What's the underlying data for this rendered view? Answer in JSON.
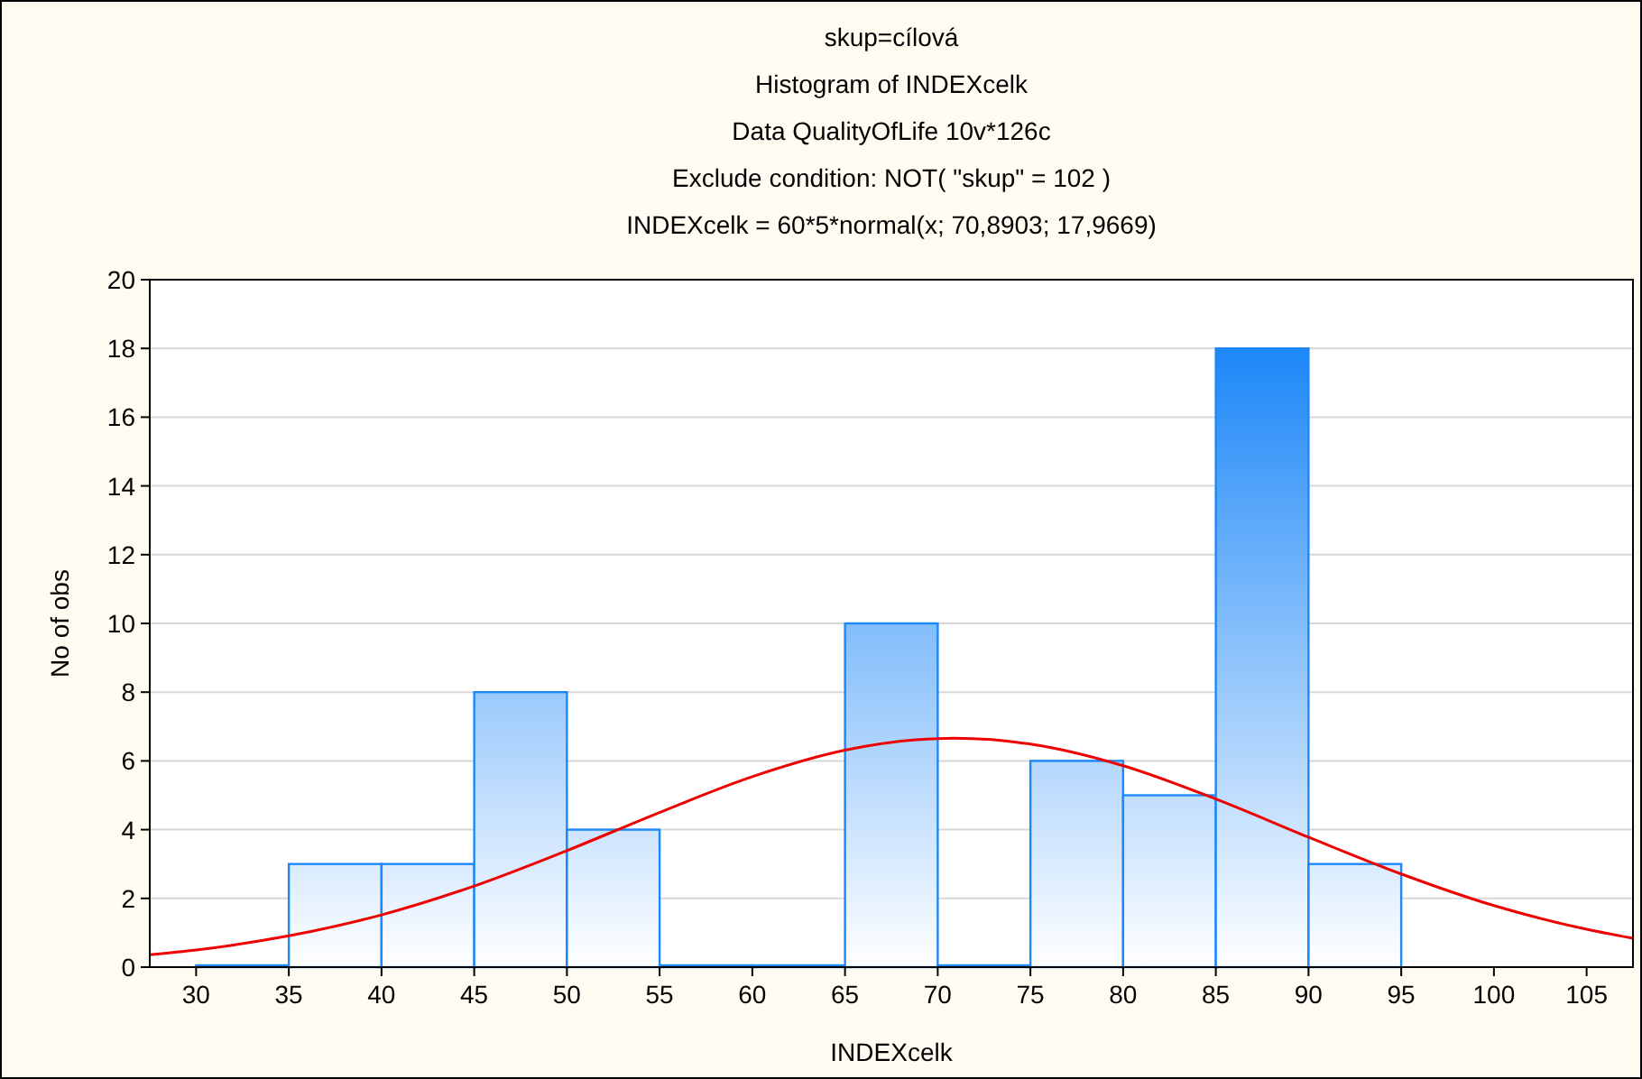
{
  "chart_data": {
    "type": "histogram",
    "title": "skup=cílová",
    "subtitle": "Histogram of INDEXcelk",
    "annotations": [
      "Data QualityOfLife 10v*126c",
      "Exclude condition: NOT( \"skup\" = 102 )",
      "INDEXcelk = 60*5*normal(x; 70,8903; 17,9669)"
    ],
    "xlabel": "INDEXcelk",
    "ylabel": "No of obs",
    "bins": [
      30,
      35,
      40,
      45,
      50,
      55,
      60,
      65,
      70,
      75,
      80,
      85,
      90,
      95
    ],
    "values": [
      0,
      3,
      3,
      8,
      4,
      0,
      0,
      10,
      0,
      6,
      5,
      18,
      3
    ],
    "color": "#1e88f8",
    "series": [
      {
        "type": "line",
        "color": "#ee0000",
        "x": [
          27.5,
          30,
          35,
          40,
          45,
          50,
          55,
          60,
          65,
          70,
          70.89,
          75,
          80,
          85,
          90,
          95,
          100,
          105,
          107.5
        ],
        "values": [
          0.36,
          0.5,
          0.91,
          1.52,
          2.36,
          3.39,
          4.5,
          5.54,
          6.31,
          6.65,
          6.66,
          6.49,
          5.86,
          4.89,
          3.78,
          2.71,
          1.79,
          1.1,
          0.84
        ]
      }
    ],
    "xlim": [
      27.5,
      107.5
    ],
    "xticks": [
      30,
      35,
      40,
      45,
      50,
      55,
      60,
      65,
      70,
      75,
      80,
      85,
      90,
      95,
      100,
      105
    ],
    "ylim": [
      0,
      20
    ],
    "yticks": [
      0,
      2,
      4,
      6,
      8,
      10,
      12,
      14,
      16,
      18,
      20
    ],
    "grid": "y"
  }
}
